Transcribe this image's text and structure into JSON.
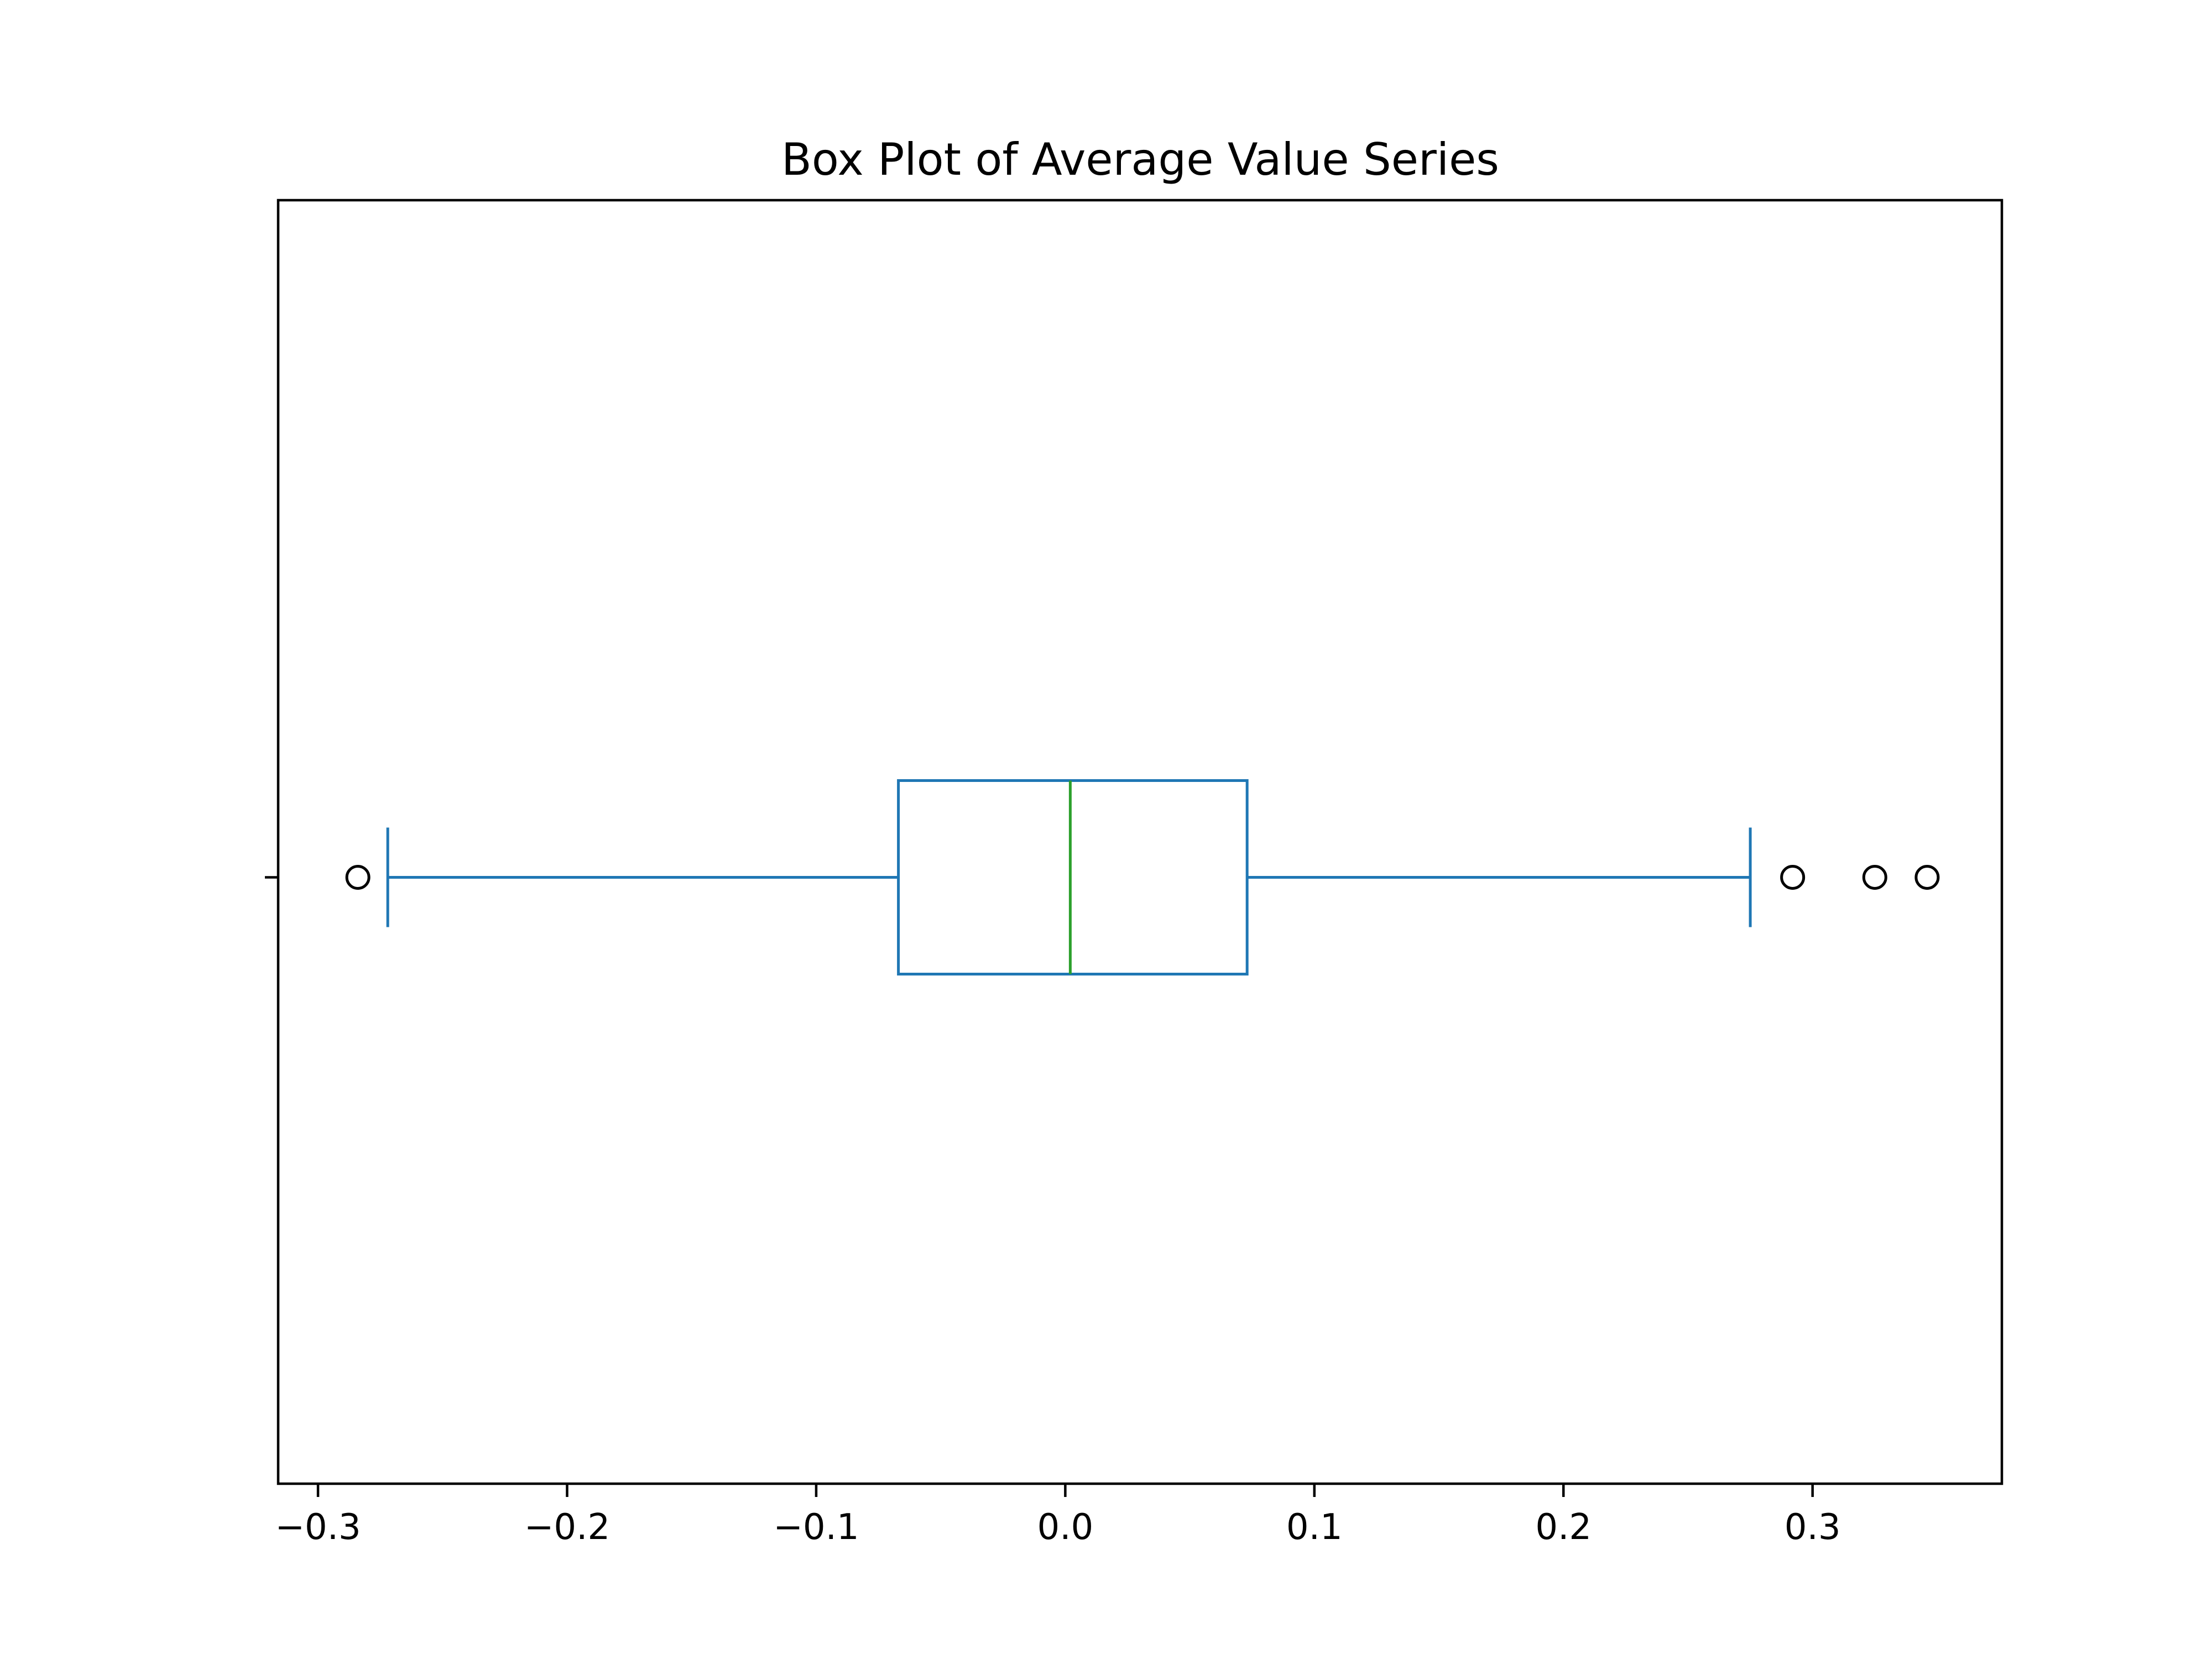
{
  "chart_data": {
    "type": "box",
    "title": "Box Plot of Average Value Series",
    "orientation": "horizontal",
    "xlim": [
      -0.316,
      0.376
    ],
    "x_ticks": [
      -0.3,
      -0.2,
      -0.1,
      0.0,
      0.1,
      0.2,
      0.3
    ],
    "x_tick_labels": [
      "−0.3",
      "−0.2",
      "−0.1",
      "0.0",
      "0.1",
      "0.2",
      "0.3"
    ],
    "y_tick_labels": [
      ""
    ],
    "grid": false,
    "boxes": [
      {
        "whisker_low": -0.272,
        "q1": -0.067,
        "median": 0.002,
        "q3": 0.073,
        "whisker_high": 0.275,
        "fliers": [
          -0.284,
          0.292,
          0.325,
          0.346
        ]
      }
    ],
    "colors": {
      "box": "#1f77b4",
      "median": "#2ca02c",
      "flier": "#000000"
    }
  }
}
